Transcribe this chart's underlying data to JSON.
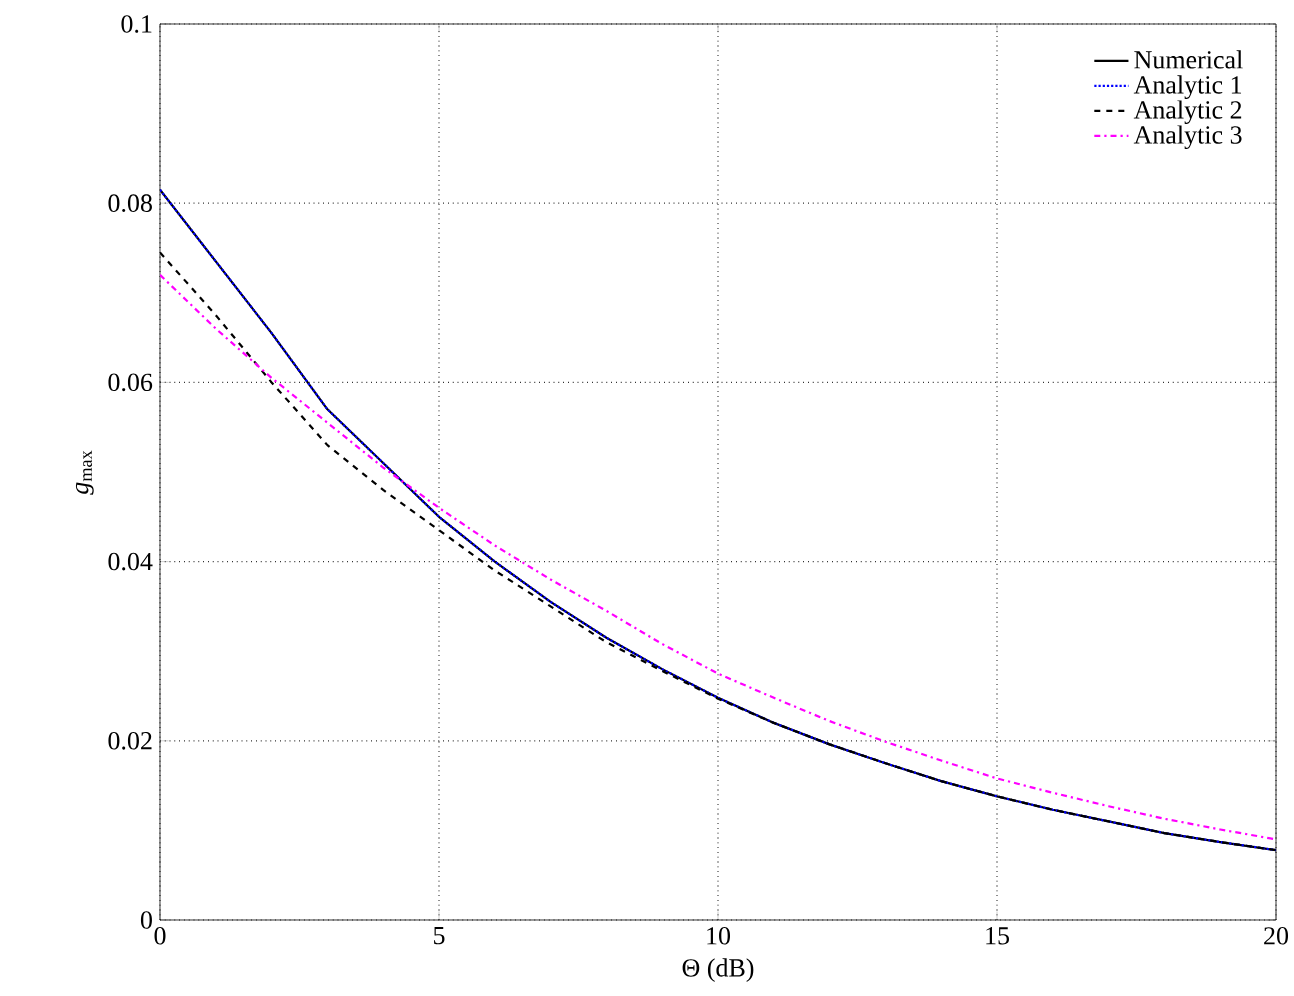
{
  "chart_data": {
    "type": "line",
    "xlabel": "Θ (dB)",
    "ylabel": "*g*$_{max}$",
    "xlim": [
      0,
      20
    ],
    "ylim": [
      0,
      0.1
    ],
    "xticks": [
      0,
      5,
      10,
      15,
      20
    ],
    "yticks": [
      0,
      0.02,
      0.04,
      0.06,
      0.08,
      0.1
    ],
    "grid": true,
    "legend": "top right",
    "marker": "none",
    "x": [
      0,
      1,
      2,
      3,
      4,
      5,
      6,
      7,
      8,
      9,
      10,
      11,
      12,
      13,
      14,
      15,
      16,
      17,
      18,
      19,
      20
    ],
    "series": [
      {
        "name": "Numerical",
        "color": "#000000",
        "line_style": "solid",
        "values": [
          0.0815,
          0.0735,
          0.0655,
          0.057,
          0.051,
          0.045,
          0.04,
          0.0355,
          0.0315,
          0.028,
          0.0248,
          0.022,
          0.0196,
          0.0175,
          0.0155,
          0.0138,
          0.0123,
          0.011,
          0.0097,
          0.0087,
          0.0078
        ]
      },
      {
        "name": "Analytic 1",
        "color": "#0000ff",
        "line_style": "dotted",
        "values": [
          0.0815,
          0.0735,
          0.0655,
          0.057,
          0.051,
          0.045,
          0.04,
          0.0355,
          0.0315,
          0.028,
          0.0248,
          0.022,
          0.0196,
          0.0175,
          0.0155,
          0.0138,
          0.0123,
          0.011,
          0.0097,
          0.0087,
          0.0078
        ]
      },
      {
        "name": "Analytic 2",
        "color": "#000000",
        "line_style": "dashed",
        "values": [
          0.0745,
          0.0675,
          0.06,
          0.053,
          0.048,
          0.0435,
          0.039,
          0.035,
          0.031,
          0.0278,
          0.0247,
          0.022,
          0.0196,
          0.0175,
          0.0155,
          0.0138,
          0.0123,
          0.011,
          0.0097,
          0.0087,
          0.0078
        ]
      },
      {
        "name": "Analytic 3",
        "color": "#ff00ff",
        "line_style": "dashdot",
        "values": [
          0.072,
          0.066,
          0.0605,
          0.0555,
          0.0505,
          0.046,
          0.0418,
          0.038,
          0.0345,
          0.0308,
          0.0275,
          0.0248,
          0.0222,
          0.0199,
          0.0178,
          0.0158,
          0.0142,
          0.0127,
          0.0113,
          0.0101,
          0.009
        ]
      }
    ]
  }
}
